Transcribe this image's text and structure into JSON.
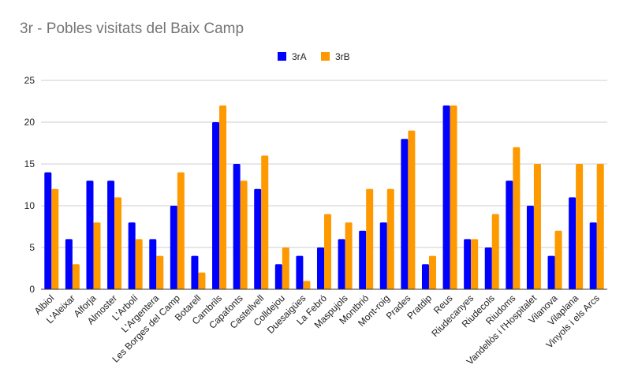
{
  "chart_data": {
    "type": "bar",
    "title": "3r - Pobles visitats del Baix Camp",
    "xlabel": "",
    "ylabel": "",
    "ylim": [
      0,
      25
    ],
    "yticks": [
      0,
      5,
      10,
      15,
      20,
      25
    ],
    "grid": true,
    "legend": "top",
    "categories": [
      "Albiol",
      "L'Aleixar",
      "Alforja",
      "Almoster",
      "L'Arbolí",
      "L'Argentera",
      "Les Borges del Camp",
      "Botarell",
      "Cambrils",
      "Capafonts",
      "Castellvell",
      "Colldejou",
      "Duesaigües",
      "La Febró",
      "Maspujols",
      "Montbrió",
      "Mont-roig",
      "Prades",
      "Pratdip",
      "Reus",
      "Riudecanyes",
      "Riudecols",
      "Riudoms",
      "Vandellòs i l'Hospitalet",
      "Vilanova",
      "Vilaplana",
      "Vinyols i els Arcs"
    ],
    "series": [
      {
        "name": "3rA",
        "color": "#0000ff",
        "values": [
          14,
          6,
          13,
          13,
          8,
          6,
          10,
          4,
          20,
          15,
          12,
          3,
          4,
          5,
          6,
          7,
          8,
          18,
          3,
          22,
          6,
          5,
          13,
          10,
          4,
          11,
          8
        ]
      },
      {
        "name": "3rB",
        "color": "#ff9900",
        "values": [
          12,
          3,
          8,
          11,
          6,
          4,
          14,
          2,
          22,
          13,
          16,
          5,
          1,
          9,
          8,
          12,
          12,
          19,
          4,
          22,
          6,
          9,
          17,
          15,
          7,
          15,
          15
        ]
      }
    ]
  }
}
